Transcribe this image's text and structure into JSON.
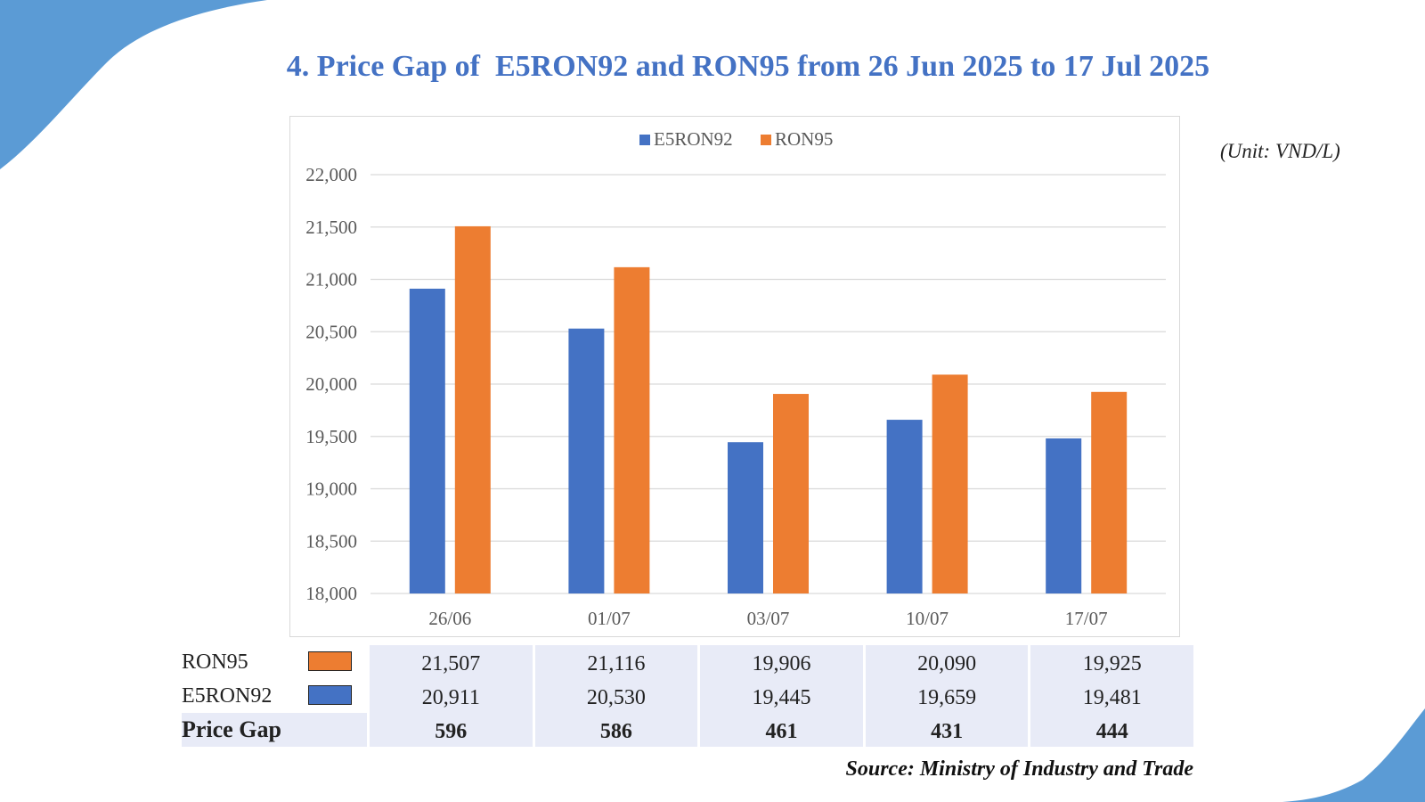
{
  "title": "4. Price Gap of  E5RON92 and RON95 from 26 Jun 2025 to 17 Jul 2025",
  "unit_label": "(Unit: VND/L)",
  "source": "Source: Ministry of Industry and Trade",
  "colors": {
    "e5ron92": "#4472c4",
    "ron95": "#ed7d31",
    "accent_blue": "#5b9bd5",
    "table_fill": "#e8ebf7"
  },
  "chart_data": {
    "type": "bar",
    "categories": [
      "26/06",
      "01/07",
      "03/07",
      "10/07",
      "17/07"
    ],
    "series": [
      {
        "name": "E5RON92",
        "values": [
          20911,
          20530,
          19445,
          19659,
          19481
        ]
      },
      {
        "name": "RON95",
        "values": [
          21507,
          21116,
          19906,
          20090,
          19925
        ]
      }
    ],
    "ylim": [
      18000,
      22000
    ],
    "yticks": [
      "18,000",
      "18,500",
      "19,000",
      "19,500",
      "20,000",
      "20,500",
      "21,000",
      "21,500",
      "22,000"
    ],
    "grid": true,
    "legend_position": "top-center"
  },
  "table": {
    "rows": [
      {
        "label": "RON95",
        "values": [
          "21,507",
          "21,116",
          "19,906",
          "20,090",
          "19,925"
        ]
      },
      {
        "label": "E5RON92",
        "values": [
          "20,911",
          "20,530",
          "19,445",
          "19,659",
          "19,481"
        ]
      },
      {
        "label": "Price Gap",
        "values": [
          "596",
          "586",
          "461",
          "431",
          "444"
        ]
      }
    ]
  }
}
